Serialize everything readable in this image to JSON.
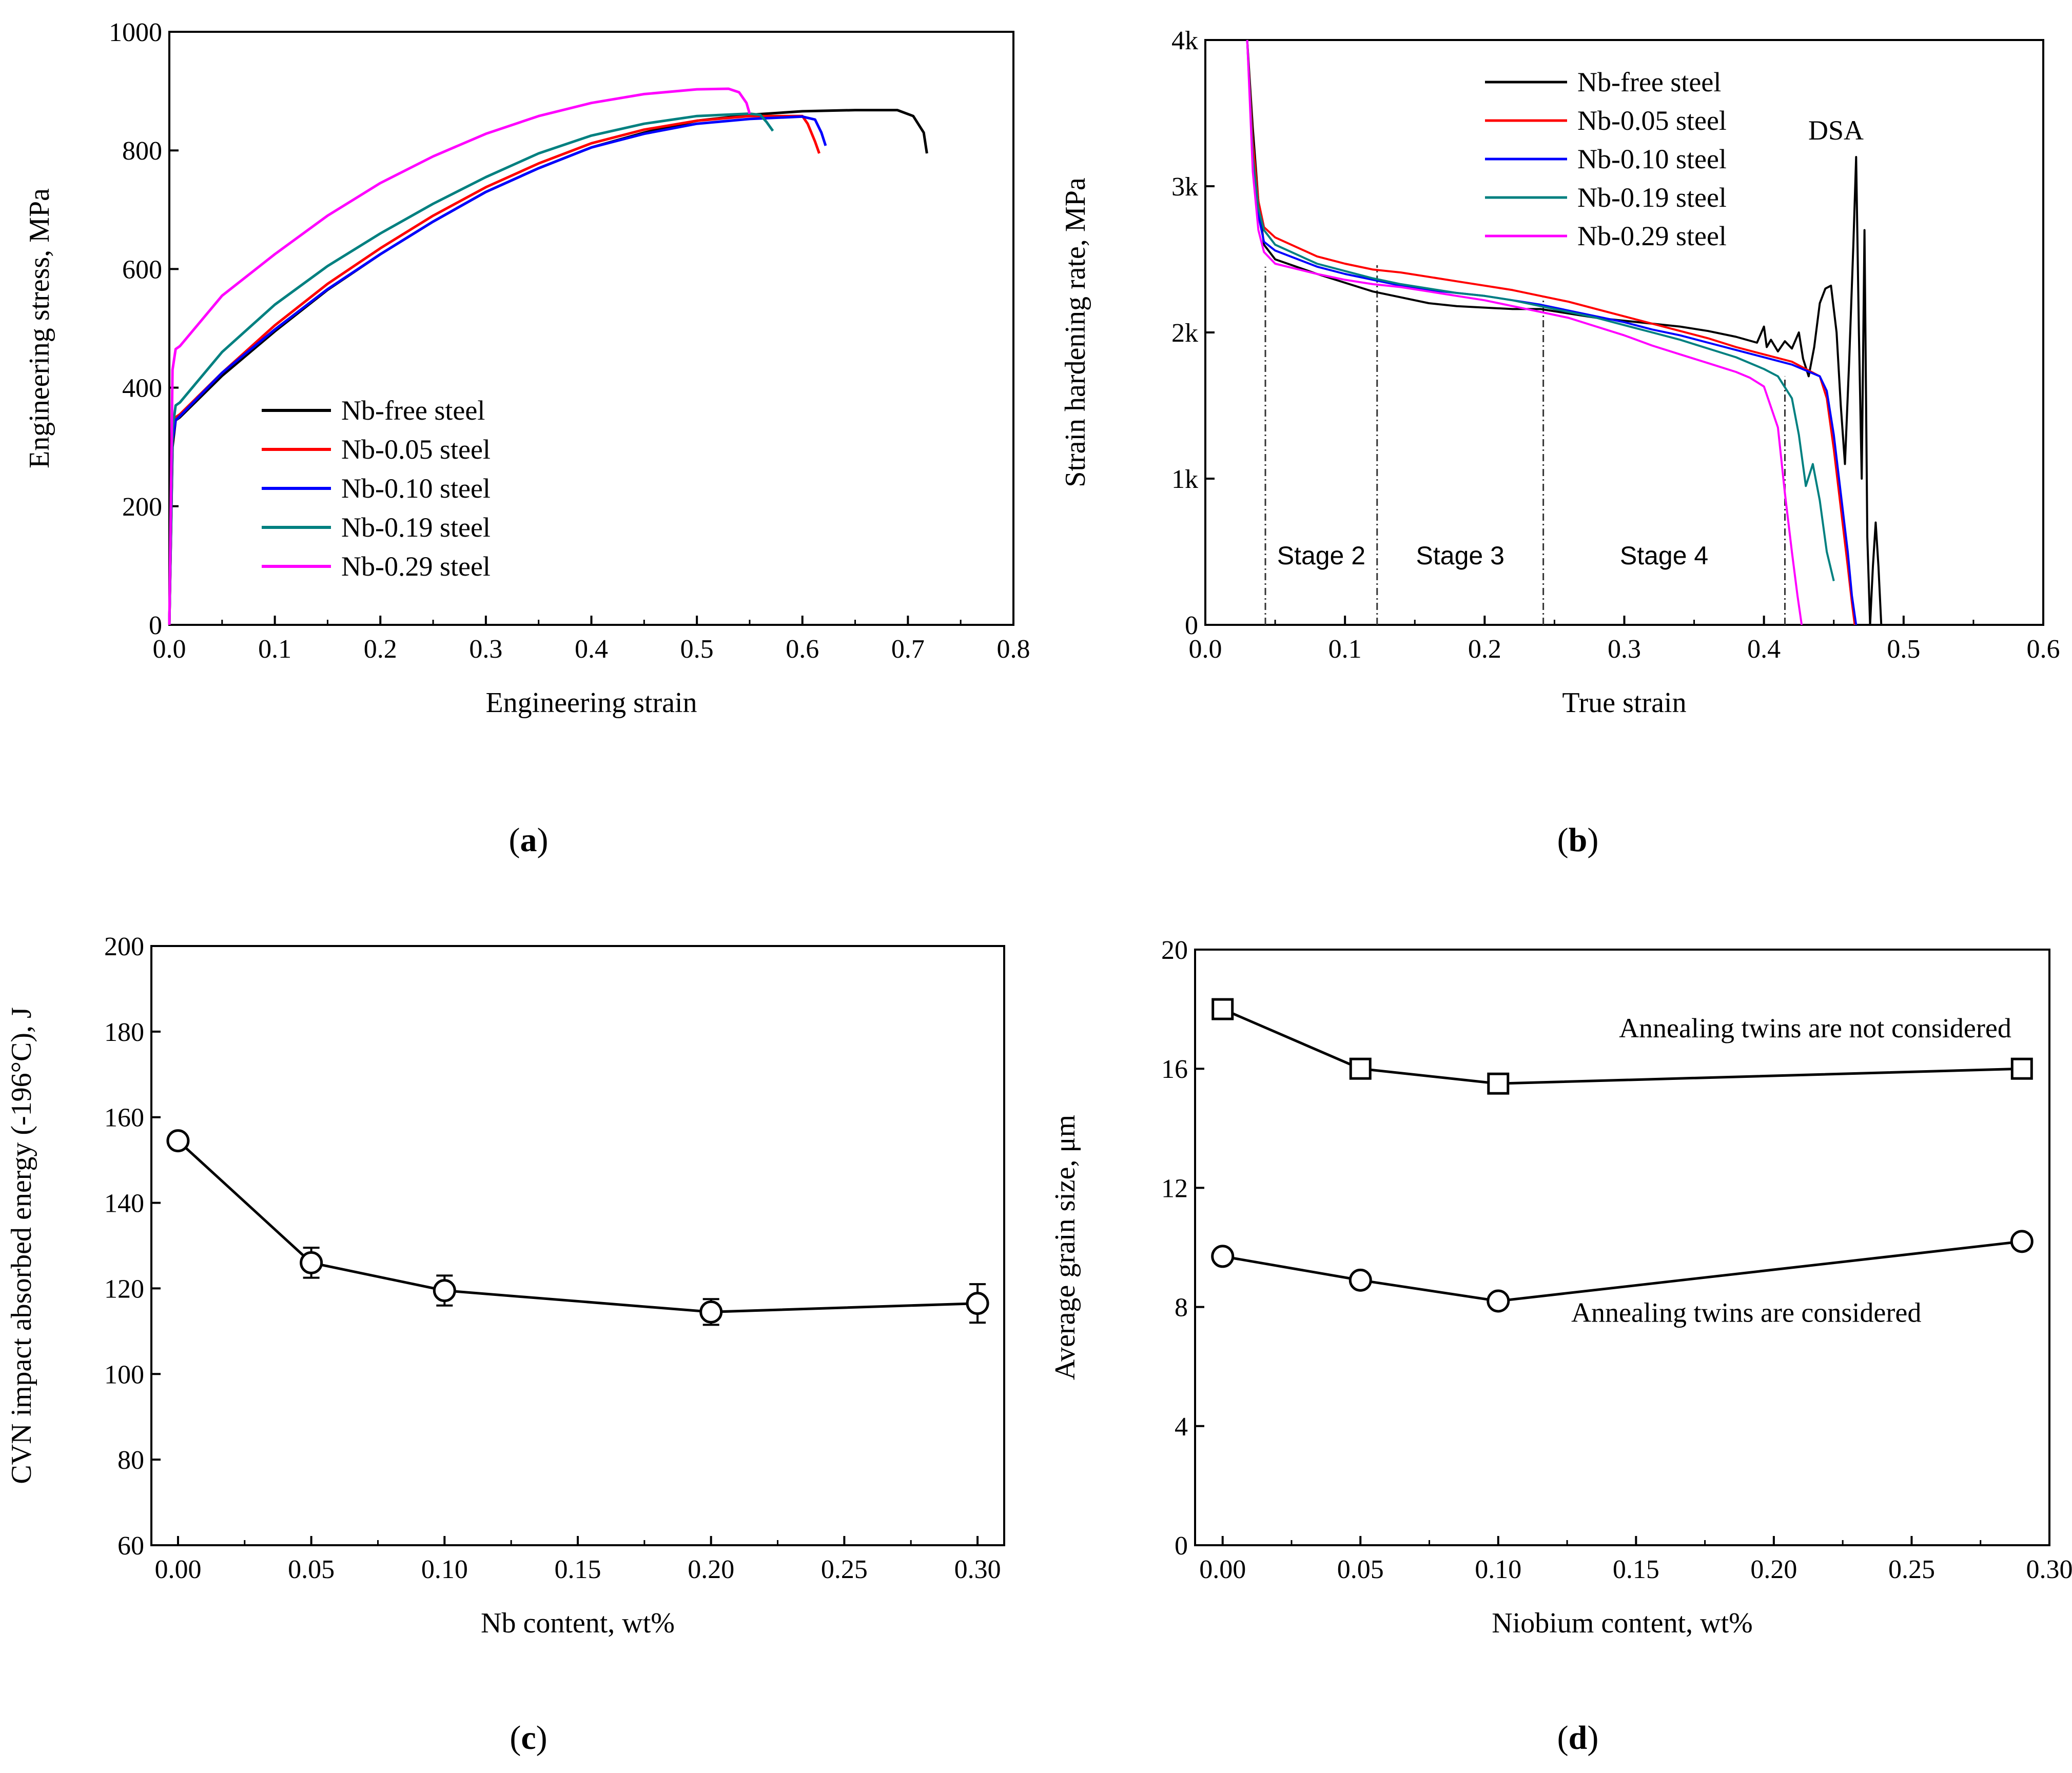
{
  "panels": {
    "a": {
      "label": "a"
    },
    "b": {
      "label": "b"
    },
    "c": {
      "label": "c"
    },
    "d": {
      "label": "d"
    }
  },
  "chart_data": [
    {
      "id": "a",
      "type": "line",
      "xlabel": "Engineering strain",
      "ylabel": "Engineering stress, MPa",
      "xlim": [
        0,
        0.8
      ],
      "ylim": [
        0,
        1000
      ],
      "xticks": [
        "0.0",
        "0.1",
        "0.2",
        "0.3",
        "0.4",
        "0.5",
        "0.6",
        "0.7",
        "0.8"
      ],
      "yticks": [
        "0",
        "200",
        "400",
        "600",
        "800",
        "1000"
      ],
      "legend": "lower-left",
      "grid": false,
      "series": [
        {
          "name": "Nb-free steel",
          "color": "#000000",
          "x": [
            0,
            0.003,
            0.006,
            0.01,
            0.05,
            0.1,
            0.15,
            0.2,
            0.25,
            0.3,
            0.35,
            0.4,
            0.45,
            0.5,
            0.55,
            0.6,
            0.65,
            0.69,
            0.705,
            0.715,
            0.718
          ],
          "y": [
            0,
            300,
            345,
            350,
            420,
            495,
            565,
            625,
            680,
            730,
            770,
            805,
            830,
            850,
            860,
            866,
            868,
            868,
            858,
            830,
            795
          ]
        },
        {
          "name": "Nb-0.05 steel",
          "color": "#ff0000",
          "x": [
            0,
            0.003,
            0.006,
            0.01,
            0.05,
            0.1,
            0.15,
            0.2,
            0.25,
            0.3,
            0.35,
            0.4,
            0.45,
            0.5,
            0.55,
            0.6,
            0.605,
            0.612,
            0.616
          ],
          "y": [
            0,
            310,
            350,
            355,
            425,
            505,
            575,
            635,
            690,
            738,
            778,
            812,
            835,
            850,
            858,
            858,
            845,
            815,
            795
          ]
        },
        {
          "name": "Nb-0.10 steel",
          "color": "#0000ff",
          "x": [
            0,
            0.003,
            0.006,
            0.01,
            0.05,
            0.1,
            0.15,
            0.2,
            0.25,
            0.3,
            0.35,
            0.4,
            0.45,
            0.5,
            0.55,
            0.6,
            0.612,
            0.618,
            0.622
          ],
          "y": [
            0,
            312,
            345,
            352,
            425,
            498,
            566,
            625,
            680,
            730,
            770,
            805,
            828,
            845,
            853,
            857,
            852,
            830,
            808
          ]
        },
        {
          "name": "Nb-0.19 steel",
          "color": "#008080",
          "x": [
            0,
            0.003,
            0.006,
            0.01,
            0.05,
            0.1,
            0.15,
            0.2,
            0.25,
            0.3,
            0.35,
            0.4,
            0.45,
            0.5,
            0.55,
            0.56,
            0.566,
            0.572
          ],
          "y": [
            0,
            330,
            370,
            375,
            460,
            540,
            605,
            660,
            710,
            755,
            795,
            825,
            845,
            858,
            862,
            860,
            848,
            833
          ]
        },
        {
          "name": "Nb-0.29 steel",
          "color": "#ff00ff",
          "x": [
            0,
            0.003,
            0.006,
            0.01,
            0.05,
            0.1,
            0.15,
            0.2,
            0.25,
            0.3,
            0.35,
            0.4,
            0.45,
            0.5,
            0.53,
            0.54,
            0.547,
            0.55
          ],
          "y": [
            0,
            430,
            465,
            470,
            555,
            625,
            690,
            745,
            790,
            828,
            858,
            880,
            895,
            903,
            904,
            898,
            880,
            862
          ]
        }
      ]
    },
    {
      "id": "b",
      "type": "line",
      "xlabel": "True strain",
      "ylabel": "Strain hardening rate, MPa",
      "xlim": [
        0,
        0.6
      ],
      "ylim": [
        0,
        4000
      ],
      "xticks": [
        "0.0",
        "0.1",
        "0.2",
        "0.3",
        "0.4",
        "0.5",
        "0.6"
      ],
      "yticks": [
        "0",
        "1k",
        "2k",
        "3k",
        "4k"
      ],
      "legend": "top-center",
      "grid": false,
      "annotations": [
        "DSA",
        "Stage 2",
        "Stage 3",
        "Stage 4"
      ],
      "stage_lines_x": [
        0.043,
        0.123,
        0.242,
        0.415
      ],
      "series": [
        {
          "name": "Nb-free steel",
          "color": "#000000",
          "x": [
            0.03,
            0.034,
            0.038,
            0.042,
            0.05,
            0.08,
            0.1,
            0.12,
            0.14,
            0.16,
            0.18,
            0.2,
            0.22,
            0.24,
            0.26,
            0.28,
            0.3,
            0.32,
            0.34,
            0.36,
            0.38,
            0.395,
            0.4,
            0.402,
            0.405,
            0.41,
            0.415,
            0.42,
            0.425,
            0.428,
            0.432,
            0.436,
            0.44,
            0.444,
            0.448,
            0.452,
            0.455,
            0.458,
            0.461,
            0.464,
            0.466,
            0.468,
            0.47,
            0.472,
            0.474,
            0.476,
            0.478,
            0.48,
            0.482,
            0.484
          ],
          "y": [
            4000,
            3400,
            2900,
            2600,
            2500,
            2400,
            2340,
            2280,
            2240,
            2200,
            2180,
            2170,
            2160,
            2160,
            2130,
            2100,
            2080,
            2060,
            2040,
            2010,
            1970,
            1930,
            2040,
            1900,
            1950,
            1870,
            1940,
            1890,
            2000,
            1820,
            1700,
            1900,
            2200,
            2300,
            2320,
            2000,
            1500,
            1100,
            1800,
            2600,
            3200,
            2000,
            1000,
            2700,
            600,
            0,
            400,
            700,
            400,
            0
          ]
        },
        {
          "name": "Nb-0.05 steel",
          "color": "#ff0000",
          "x": [
            0.03,
            0.034,
            0.038,
            0.042,
            0.05,
            0.08,
            0.1,
            0.12,
            0.14,
            0.16,
            0.18,
            0.2,
            0.22,
            0.24,
            0.26,
            0.28,
            0.3,
            0.32,
            0.34,
            0.36,
            0.38,
            0.4,
            0.42,
            0.44,
            0.445,
            0.45,
            0.455,
            0.46,
            0.463,
            0.465
          ],
          "y": [
            4000,
            3300,
            2900,
            2720,
            2650,
            2520,
            2470,
            2430,
            2410,
            2380,
            2350,
            2320,
            2290,
            2250,
            2210,
            2160,
            2110,
            2060,
            2010,
            1960,
            1900,
            1850,
            1800,
            1700,
            1550,
            1200,
            800,
            400,
            150,
            0
          ]
        },
        {
          "name": "Nb-0.10 steel",
          "color": "#0000ff",
          "x": [
            0.03,
            0.034,
            0.038,
            0.042,
            0.05,
            0.08,
            0.1,
            0.12,
            0.14,
            0.16,
            0.18,
            0.2,
            0.22,
            0.24,
            0.26,
            0.28,
            0.3,
            0.32,
            0.34,
            0.36,
            0.38,
            0.4,
            0.42,
            0.44,
            0.445,
            0.45,
            0.455,
            0.46,
            0.463,
            0.466
          ],
          "y": [
            4000,
            3200,
            2800,
            2620,
            2560,
            2450,
            2400,
            2360,
            2320,
            2290,
            2270,
            2250,
            2220,
            2190,
            2150,
            2110,
            2070,
            2020,
            1980,
            1930,
            1880,
            1830,
            1780,
            1700,
            1600,
            1300,
            900,
            500,
            200,
            0
          ]
        },
        {
          "name": "Nb-0.19 steel",
          "color": "#008080",
          "x": [
            0.03,
            0.034,
            0.038,
            0.042,
            0.05,
            0.08,
            0.1,
            0.12,
            0.14,
            0.16,
            0.18,
            0.2,
            0.22,
            0.24,
            0.26,
            0.28,
            0.3,
            0.32,
            0.34,
            0.36,
            0.38,
            0.4,
            0.41,
            0.42,
            0.425,
            0.43,
            0.435,
            0.44,
            0.445,
            0.45
          ],
          "y": [
            4000,
            3200,
            2850,
            2700,
            2600,
            2470,
            2420,
            2370,
            2330,
            2300,
            2270,
            2250,
            2220,
            2180,
            2140,
            2100,
            2050,
            2000,
            1950,
            1890,
            1830,
            1750,
            1700,
            1550,
            1300,
            950,
            1100,
            850,
            500,
            300
          ]
        },
        {
          "name": "Nb-0.29 steel",
          "color": "#ff00ff",
          "x": [
            0.03,
            0.034,
            0.038,
            0.042,
            0.05,
            0.08,
            0.1,
            0.12,
            0.14,
            0.16,
            0.18,
            0.2,
            0.22,
            0.24,
            0.26,
            0.28,
            0.3,
            0.32,
            0.34,
            0.36,
            0.38,
            0.39,
            0.4,
            0.41,
            0.415,
            0.42,
            0.424,
            0.427
          ],
          "y": [
            4000,
            3100,
            2700,
            2550,
            2470,
            2400,
            2360,
            2330,
            2310,
            2280,
            2250,
            2220,
            2180,
            2140,
            2100,
            2040,
            1980,
            1910,
            1850,
            1790,
            1730,
            1690,
            1630,
            1350,
            900,
            500,
            200,
            0
          ]
        }
      ]
    },
    {
      "id": "c",
      "type": "line",
      "xlabel": "Nb content, wt%",
      "ylabel": "CVN impact absorbed energy (-196°C), J",
      "xlim": [
        -0.01,
        0.31
      ],
      "ylim": [
        60,
        200
      ],
      "xticks": [
        "0.00",
        "0.05",
        "0.10",
        "0.15",
        "0.20",
        "0.25",
        "0.30"
      ],
      "yticks": [
        "60",
        "80",
        "100",
        "120",
        "140",
        "160",
        "180",
        "200"
      ],
      "grid": false,
      "series": [
        {
          "marker": "circle",
          "x": [
            0,
            0.05,
            0.1,
            0.2,
            0.3
          ],
          "y": [
            154.5,
            126,
            119.5,
            114.5,
            116.5
          ],
          "err": [
            1.5,
            3.5,
            3.5,
            3,
            4.5
          ]
        }
      ]
    },
    {
      "id": "d",
      "type": "line",
      "xlabel": "Niobium content, wt%",
      "ylabel": "Average grain size, μm",
      "xlim": [
        -0.01,
        0.3
      ],
      "ylim": [
        0,
        20
      ],
      "xticks": [
        "0.00",
        "0.05",
        "0.10",
        "0.15",
        "0.20",
        "0.25",
        "0.30"
      ],
      "yticks": [
        "0",
        "4",
        "8",
        "12",
        "16",
        "20"
      ],
      "grid": false,
      "annotations": [
        "Annealing twins are not considered",
        "Annealing twins are considered"
      ],
      "series": [
        {
          "marker": "square",
          "x": [
            0,
            0.05,
            0.1,
            0.29
          ],
          "y": [
            18,
            16,
            15.5,
            16
          ]
        },
        {
          "marker": "circle",
          "x": [
            0,
            0.05,
            0.1,
            0.29
          ],
          "y": [
            9.7,
            8.9,
            8.2,
            10.2
          ]
        }
      ]
    }
  ]
}
